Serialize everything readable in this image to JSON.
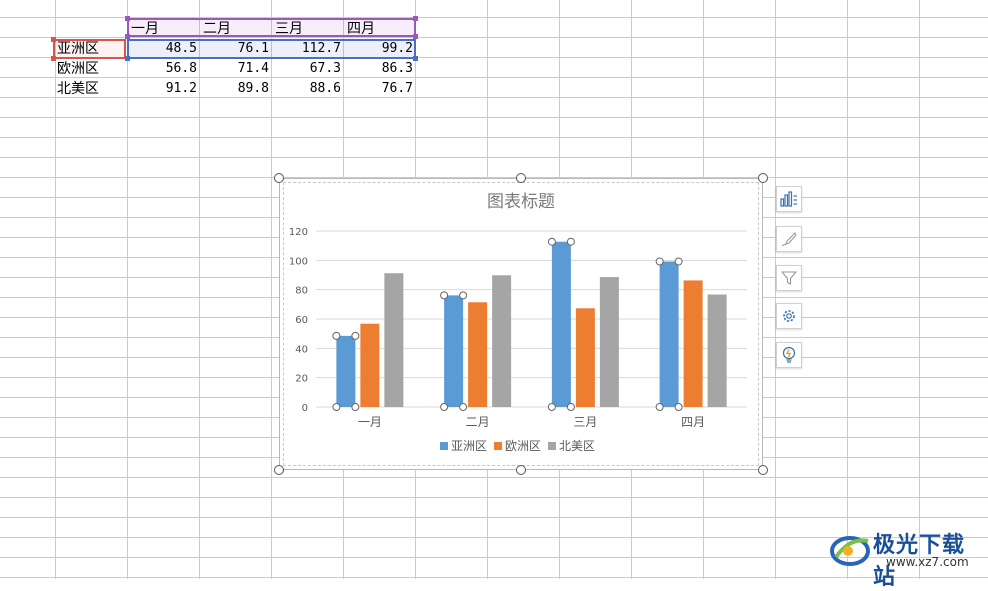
{
  "sheet": {
    "month_headers": [
      "一月",
      "二月",
      "三月",
      "四月"
    ],
    "rows": [
      {
        "label": "亚洲区",
        "values": [
          "48.5",
          "76.1",
          "112.7",
          "99.2"
        ]
      },
      {
        "label": "欧洲区",
        "values": [
          "56.8",
          "71.4",
          "67.3",
          "86.3"
        ]
      },
      {
        "label": "北美区",
        "values": [
          "91.2",
          "89.8",
          "88.6",
          "76.7"
        ]
      }
    ]
  },
  "chart_data": {
    "type": "bar",
    "title": "图表标题",
    "categories": [
      "一月",
      "二月",
      "三月",
      "四月"
    ],
    "series": [
      {
        "name": "亚洲区",
        "values": [
          48.5,
          76.1,
          112.7,
          99.2
        ],
        "color": "#5b9bd5"
      },
      {
        "name": "欧洲区",
        "values": [
          56.8,
          71.4,
          67.3,
          86.3
        ],
        "color": "#ed7d31"
      },
      {
        "name": "北美区",
        "values": [
          91.2,
          89.8,
          88.6,
          76.7
        ],
        "color": "#a5a5a5"
      }
    ],
    "yticks": [
      "0",
      "20",
      "40",
      "60",
      "80",
      "100",
      "120"
    ],
    "ylim": [
      0,
      120
    ],
    "grid": true,
    "legend": "bottom",
    "selected_series": "亚洲区"
  },
  "chart_tools": [
    "chart-elements-icon",
    "chart-style-brush-icon",
    "chart-filter-icon",
    "chart-settings-gear-icon",
    "chart-idea-lightbulb-icon"
  ],
  "watermark": {
    "text": "极光下载站",
    "url": "www.xz7.com"
  },
  "colors": {
    "gridline": "#c7c9e0",
    "selection_month": "#9b59b6",
    "selection_values": "#4a6fc7",
    "selection_series": "#d9534f"
  }
}
